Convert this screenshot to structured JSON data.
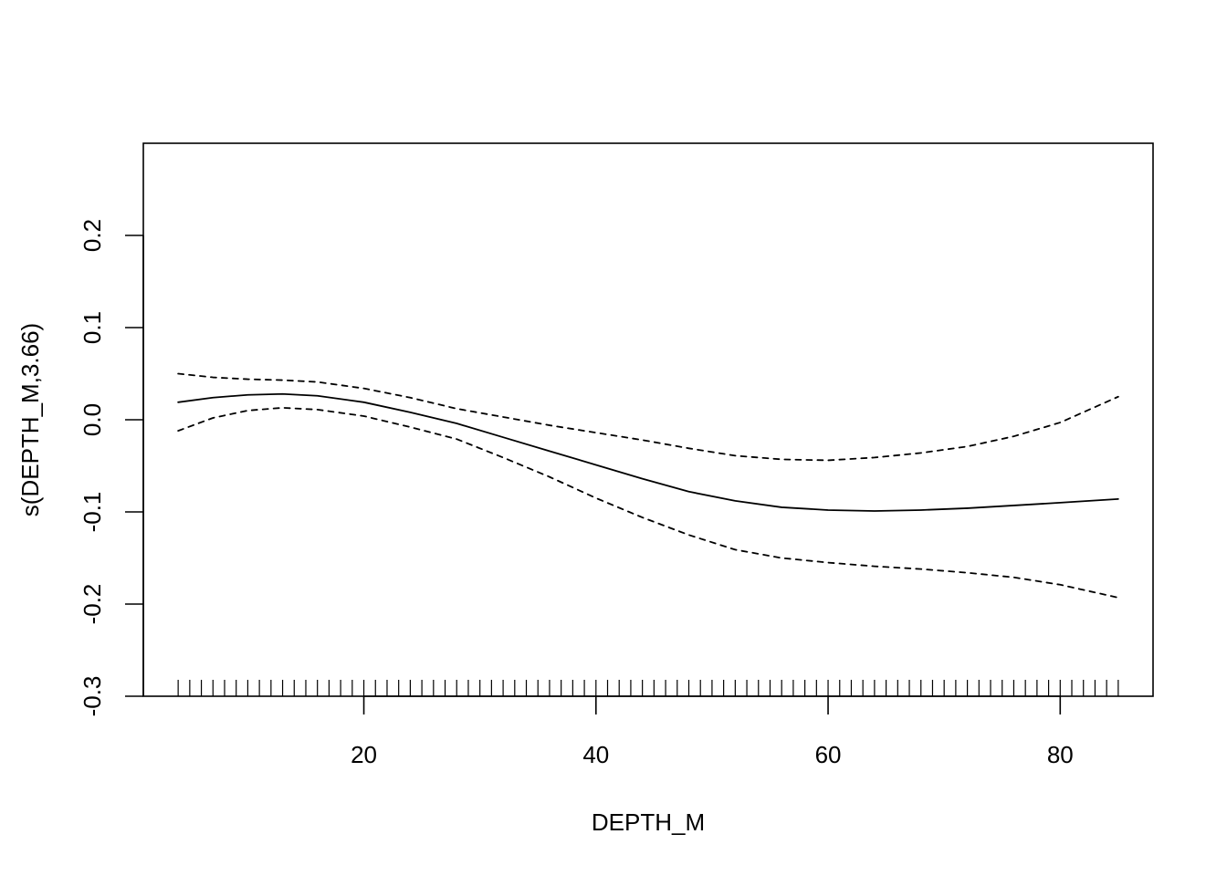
{
  "chart_data": {
    "type": "line",
    "title": "",
    "xlabel": "DEPTH_M",
    "ylabel": "s(DEPTH_M,3.66)",
    "xlim": [
      1,
      88
    ],
    "ylim": [
      -0.3,
      0.3
    ],
    "x_ticks": [
      20,
      40,
      60,
      80
    ],
    "x_tick_labels": [
      "20",
      "40",
      "60",
      "80"
    ],
    "y_ticks": [
      -0.3,
      -0.2,
      -0.1,
      0.0,
      0.1,
      0.2
    ],
    "y_tick_labels": [
      "-0.3",
      "-0.2",
      "-0.1",
      "0.0",
      "0.1",
      "0.2"
    ],
    "grid": false,
    "legend": "none",
    "colors": {
      "line": "#000000",
      "background": "#ffffff"
    },
    "x": [
      4,
      7,
      10,
      13,
      16,
      20,
      24,
      28,
      32,
      36,
      40,
      44,
      48,
      52,
      56,
      60,
      64,
      68,
      72,
      76,
      80,
      85
    ],
    "series": [
      {
        "style": "solid",
        "values": [
          0.019,
          0.024,
          0.027,
          0.028,
          0.026,
          0.019,
          0.008,
          -0.004,
          -0.019,
          -0.034,
          -0.049,
          -0.064,
          -0.078,
          -0.088,
          -0.095,
          -0.098,
          -0.099,
          -0.098,
          -0.096,
          -0.093,
          -0.09,
          -0.086
        ]
      },
      {
        "style": "dashed",
        "values": [
          0.05,
          0.046,
          0.044,
          0.043,
          0.041,
          0.034,
          0.024,
          0.012,
          0.003,
          -0.006,
          -0.014,
          -0.022,
          -0.031,
          -0.039,
          -0.043,
          -0.044,
          -0.041,
          -0.036,
          -0.029,
          -0.018,
          -0.003,
          0.025
        ]
      },
      {
        "style": "dashed",
        "values": [
          -0.012,
          0.002,
          0.01,
          0.013,
          0.011,
          0.004,
          -0.008,
          -0.021,
          -0.041,
          -0.062,
          -0.085,
          -0.106,
          -0.125,
          -0.141,
          -0.15,
          -0.155,
          -0.159,
          -0.162,
          -0.166,
          -0.171,
          -0.179,
          -0.193
        ]
      }
    ],
    "rug": [
      4,
      5,
      6,
      7,
      8,
      9,
      10,
      11,
      12,
      13,
      14,
      15,
      16,
      17,
      18,
      19,
      20,
      21,
      22,
      23,
      24,
      25,
      26,
      27,
      28,
      29,
      30,
      31,
      32,
      33,
      34,
      35,
      36,
      37,
      38,
      39,
      40,
      41,
      42,
      43,
      44,
      45,
      46,
      47,
      48,
      49,
      50,
      51,
      52,
      53,
      54,
      55,
      56,
      57,
      58,
      59,
      60,
      61,
      62,
      63,
      64,
      65,
      66,
      67,
      68,
      69,
      70,
      71,
      72,
      73,
      74,
      75,
      76,
      77,
      78,
      79,
      80,
      81,
      82,
      83,
      84,
      85
    ]
  }
}
